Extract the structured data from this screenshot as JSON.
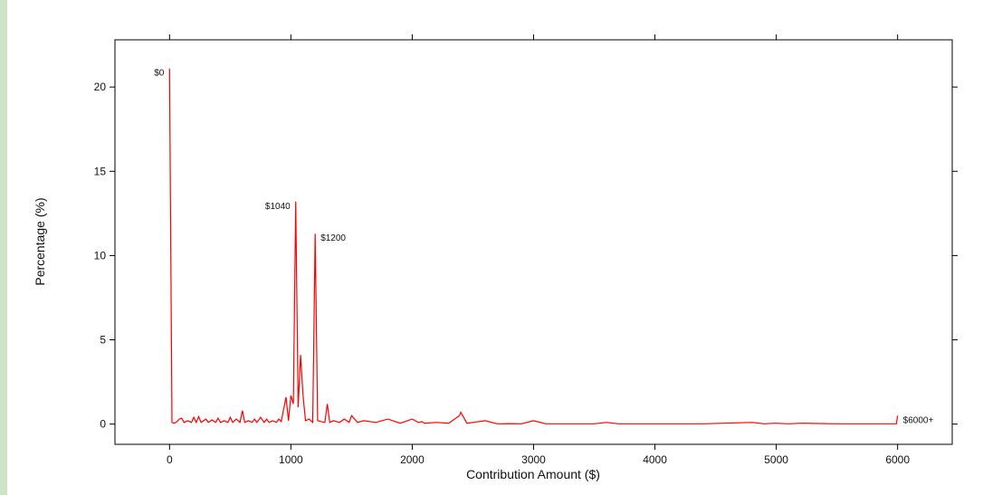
{
  "chart_data": {
    "type": "line",
    "xlabel": "Contribution Amount ($)",
    "ylabel": "Percentage (%)",
    "xlim": [
      -450,
      6450
    ],
    "ylim": [
      -1.2,
      22.8
    ],
    "xticks": [
      0,
      1000,
      2000,
      3000,
      4000,
      5000,
      6000
    ],
    "yticks": [
      0,
      5,
      10,
      15,
      20
    ],
    "grid": false,
    "series": [
      {
        "color": "#ff0000",
        "points": [
          [
            0,
            21.1
          ],
          [
            20,
            0.1
          ],
          [
            40,
            0.05
          ],
          [
            60,
            0.15
          ],
          [
            80,
            0.3
          ],
          [
            100,
            0.35
          ],
          [
            120,
            0.1
          ],
          [
            150,
            0.2
          ],
          [
            180,
            0.1
          ],
          [
            200,
            0.4
          ],
          [
            220,
            0.1
          ],
          [
            240,
            0.45
          ],
          [
            260,
            0.1
          ],
          [
            300,
            0.3
          ],
          [
            320,
            0.1
          ],
          [
            350,
            0.25
          ],
          [
            380,
            0.1
          ],
          [
            400,
            0.35
          ],
          [
            420,
            0.1
          ],
          [
            450,
            0.2
          ],
          [
            480,
            0.1
          ],
          [
            500,
            0.4
          ],
          [
            520,
            0.1
          ],
          [
            550,
            0.3
          ],
          [
            580,
            0.1
          ],
          [
            600,
            0.8
          ],
          [
            620,
            0.1
          ],
          [
            650,
            0.2
          ],
          [
            680,
            0.1
          ],
          [
            700,
            0.3
          ],
          [
            720,
            0.1
          ],
          [
            750,
            0.4
          ],
          [
            780,
            0.1
          ],
          [
            800,
            0.3
          ],
          [
            820,
            0.1
          ],
          [
            850,
            0.2
          ],
          [
            880,
            0.1
          ],
          [
            900,
            0.3
          ],
          [
            920,
            0.15
          ],
          [
            960,
            1.6
          ],
          [
            980,
            0.2
          ],
          [
            1000,
            1.7
          ],
          [
            1020,
            1.2
          ],
          [
            1040,
            13.2
          ],
          [
            1060,
            1.0
          ],
          [
            1080,
            4.1
          ],
          [
            1100,
            1.7
          ],
          [
            1120,
            0.2
          ],
          [
            1150,
            0.3
          ],
          [
            1180,
            0.1
          ],
          [
            1200,
            11.3
          ],
          [
            1220,
            0.2
          ],
          [
            1250,
            0.15
          ],
          [
            1280,
            0.1
          ],
          [
            1300,
            1.2
          ],
          [
            1320,
            0.1
          ],
          [
            1350,
            0.2
          ],
          [
            1400,
            0.1
          ],
          [
            1440,
            0.3
          ],
          [
            1480,
            0.1
          ],
          [
            1500,
            0.5
          ],
          [
            1550,
            0.1
          ],
          [
            1600,
            0.2
          ],
          [
            1700,
            0.1
          ],
          [
            1800,
            0.3
          ],
          [
            1900,
            0.05
          ],
          [
            2000,
            0.3
          ],
          [
            2050,
            0.1
          ],
          [
            2080,
            0.15
          ],
          [
            2100,
            0.05
          ],
          [
            2200,
            0.1
          ],
          [
            2300,
            0.05
          ],
          [
            2390,
            0.5
          ],
          [
            2400,
            0.7
          ],
          [
            2450,
            0.05
          ],
          [
            2500,
            0.1
          ],
          [
            2600,
            0.2
          ],
          [
            2700,
            0.02
          ],
          [
            2800,
            0.03
          ],
          [
            2900,
            0.02
          ],
          [
            3000,
            0.2
          ],
          [
            3100,
            0.02
          ],
          [
            3300,
            0.02
          ],
          [
            3500,
            0.02
          ],
          [
            3600,
            0.1
          ],
          [
            3700,
            0.02
          ],
          [
            4000,
            0.02
          ],
          [
            4400,
            0.02
          ],
          [
            4800,
            0.1
          ],
          [
            4900,
            0.02
          ],
          [
            5000,
            0.05
          ],
          [
            5100,
            0.02
          ],
          [
            5200,
            0.05
          ],
          [
            5500,
            0.02
          ],
          [
            5800,
            0.02
          ],
          [
            5990,
            0.02
          ],
          [
            6000,
            0.5
          ]
        ]
      }
    ],
    "annotations": [
      {
        "text": "$0",
        "x": 0,
        "y": 21.1,
        "anchor": "end"
      },
      {
        "text": "$1040",
        "x": 1040,
        "y": 13.2,
        "anchor": "end"
      },
      {
        "text": "$1200",
        "x": 1200,
        "y": 11.3,
        "anchor": "start"
      },
      {
        "text": "$6000+",
        "x": 6000,
        "y": 0.5,
        "anchor": "start"
      }
    ]
  }
}
